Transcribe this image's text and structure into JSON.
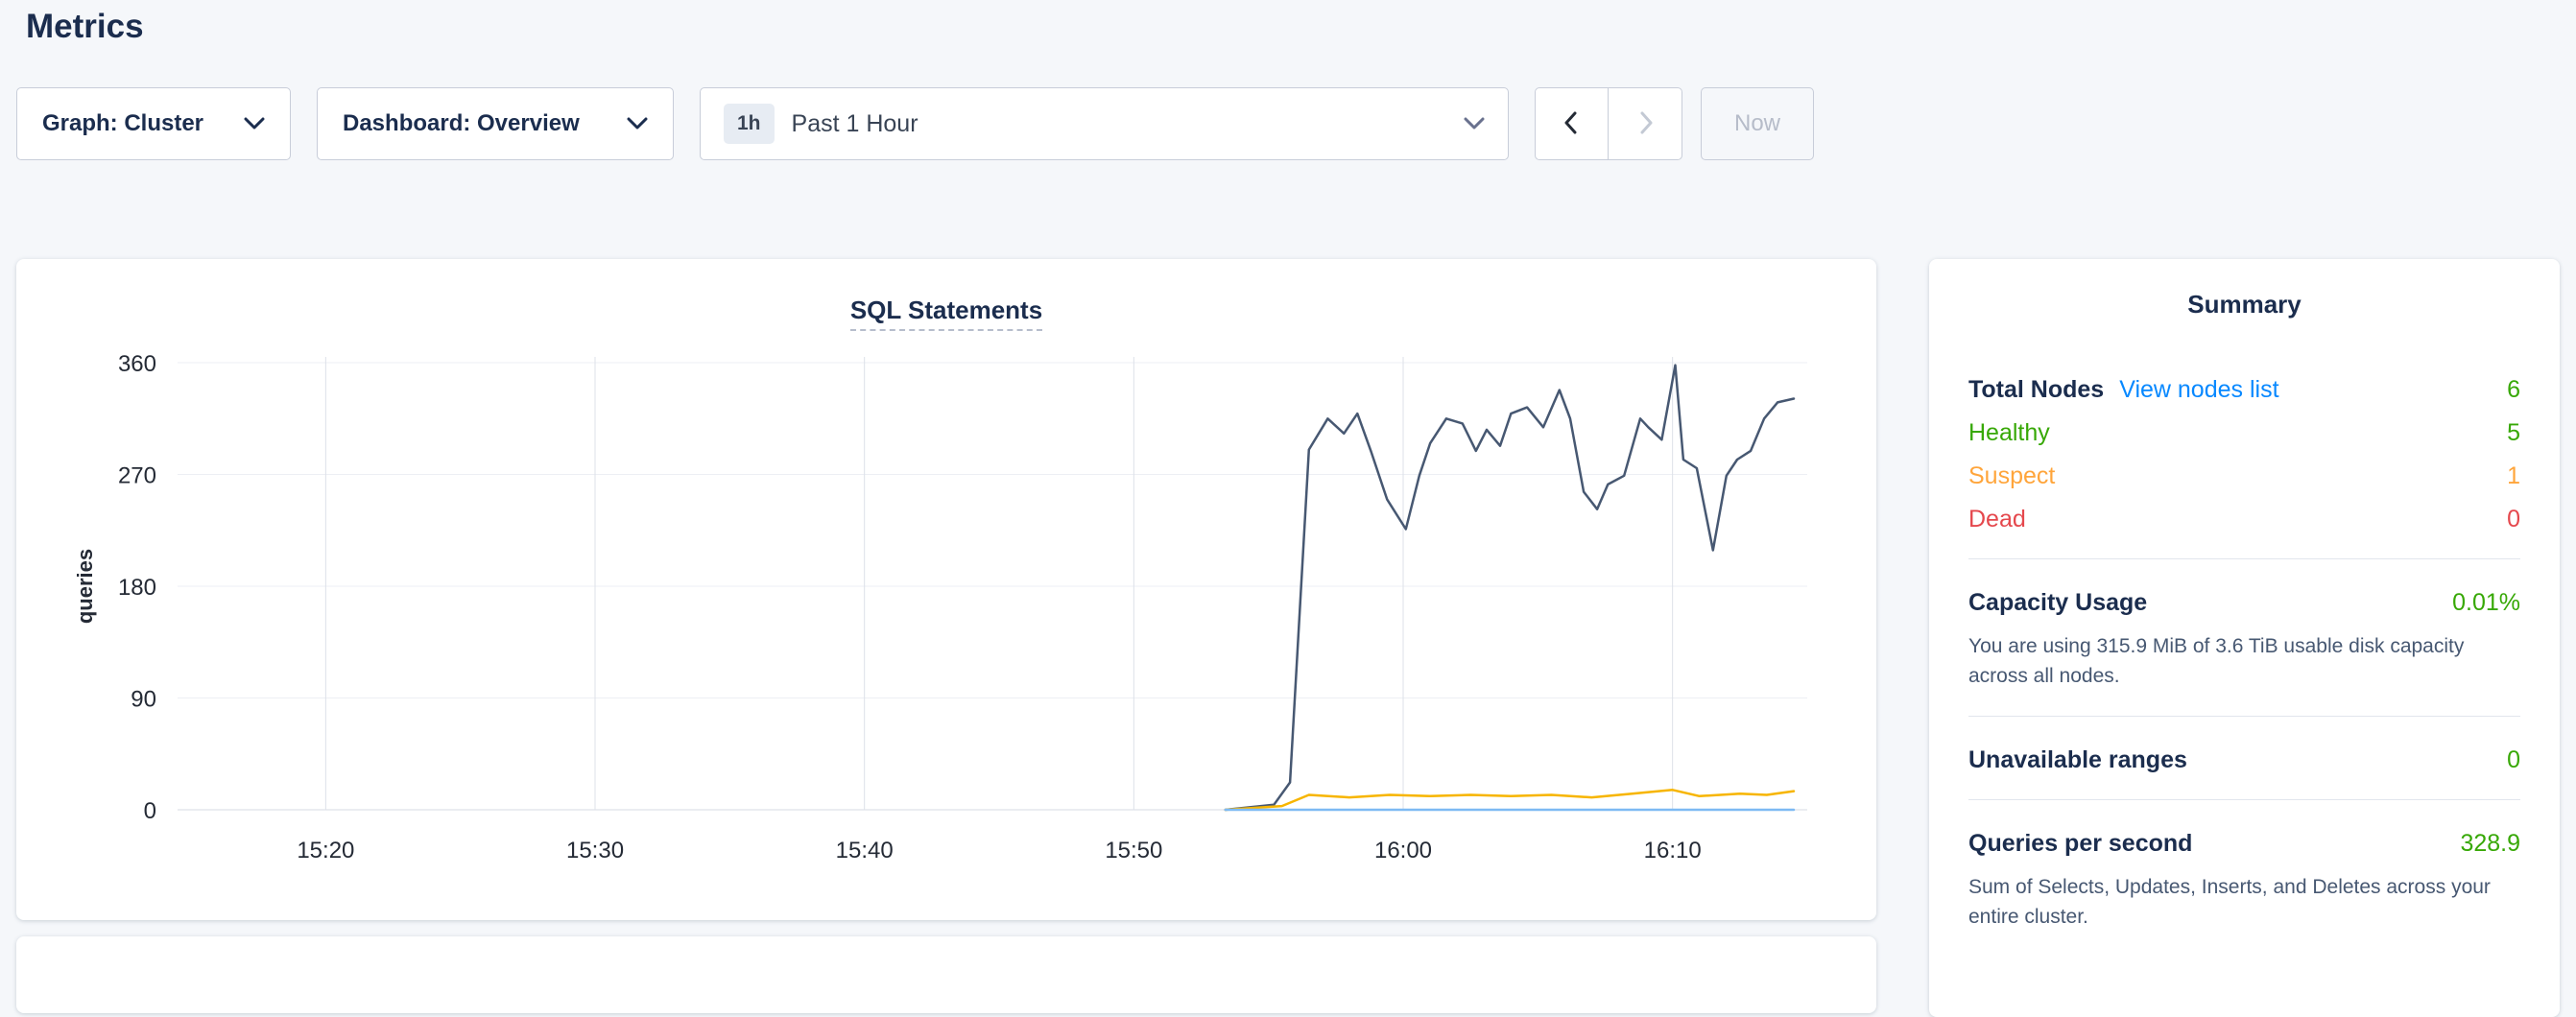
{
  "page": {
    "title": "Metrics",
    "background": "#f5f7fa"
  },
  "toolbar": {
    "graph_dropdown_label": "Graph: Cluster",
    "dashboard_dropdown_label": "Dashboard: Overview",
    "time_range_badge": "1h",
    "time_range_label": "Past 1 Hour",
    "now_button_label": "Now"
  },
  "chart_data": {
    "type": "line",
    "title": "SQL Statements",
    "ylabel": "queries",
    "ylim": [
      0,
      360
    ],
    "y_ticks": [
      0,
      90,
      180,
      270,
      360
    ],
    "x_domain": [
      -0.5,
      60
    ],
    "x_ticks": [
      {
        "t": 5,
        "label": "15:20"
      },
      {
        "t": 15,
        "label": "15:30"
      },
      {
        "t": 25,
        "label": "15:40"
      },
      {
        "t": 35,
        "label": "15:50"
      },
      {
        "t": 45,
        "label": "16:00"
      },
      {
        "t": 55,
        "label": "16:10"
      }
    ],
    "grid": true,
    "legend_position": "none",
    "series": [
      {
        "name": "series-1",
        "color": "#475872",
        "points": [
          [
            38.4,
            0
          ],
          [
            40.2,
            4
          ],
          [
            40.8,
            22
          ],
          [
            41.5,
            290
          ],
          [
            42.2,
            315
          ],
          [
            42.8,
            303
          ],
          [
            43.3,
            319
          ],
          [
            43.8,
            289
          ],
          [
            44.4,
            250
          ],
          [
            45.1,
            226
          ],
          [
            45.6,
            269
          ],
          [
            46.0,
            295
          ],
          [
            46.6,
            315
          ],
          [
            47.2,
            311
          ],
          [
            47.7,
            289
          ],
          [
            48.1,
            306
          ],
          [
            48.6,
            293
          ],
          [
            49.0,
            319
          ],
          [
            49.6,
            324
          ],
          [
            50.2,
            308
          ],
          [
            50.8,
            338
          ],
          [
            51.2,
            315
          ],
          [
            51.7,
            256
          ],
          [
            52.2,
            242
          ],
          [
            52.6,
            262
          ],
          [
            53.2,
            269
          ],
          [
            53.8,
            315
          ],
          [
            54.1,
            308
          ],
          [
            54.6,
            298
          ],
          [
            55.1,
            358
          ],
          [
            55.4,
            282
          ],
          [
            55.9,
            275
          ],
          [
            56.5,
            209
          ],
          [
            57.0,
            269
          ],
          [
            57.4,
            282
          ],
          [
            57.9,
            289
          ],
          [
            58.4,
            315
          ],
          [
            58.9,
            328
          ],
          [
            59.5,
            331
          ]
        ]
      },
      {
        "name": "series-2",
        "color": "#f7b500",
        "points": [
          [
            38.4,
            0
          ],
          [
            40.5,
            3
          ],
          [
            41.5,
            12
          ],
          [
            43,
            10
          ],
          [
            44.5,
            12
          ],
          [
            46,
            11
          ],
          [
            47.5,
            12
          ],
          [
            49,
            11
          ],
          [
            50.5,
            12
          ],
          [
            52,
            10
          ],
          [
            53.5,
            13
          ],
          [
            55,
            16
          ],
          [
            56,
            11
          ],
          [
            57.5,
            13
          ],
          [
            58.5,
            12
          ],
          [
            59.5,
            15
          ]
        ]
      },
      {
        "name": "series-3",
        "color": "#7dbaf3",
        "points": [
          [
            38.4,
            0
          ],
          [
            59.5,
            0
          ]
        ]
      }
    ]
  },
  "summary": {
    "title": "Summary",
    "total_nodes_label": "Total Nodes",
    "view_nodes_link": "View nodes list",
    "total_nodes_value": "6",
    "healthy_label": "Healthy",
    "healthy_value": "5",
    "suspect_label": "Suspect",
    "suspect_value": "1",
    "dead_label": "Dead",
    "dead_value": "0",
    "capacity_label": "Capacity Usage",
    "capacity_value": "0.01%",
    "capacity_description": "You are using 315.9 MiB of 3.6 TiB usable disk capacity across all nodes.",
    "unavailable_label": "Unavailable ranges",
    "unavailable_value": "0",
    "qps_label": "Queries per second",
    "qps_value": "328.9",
    "qps_description": "Sum of Selects, Updates, Inserts, and Deletes across your entire cluster.",
    "colors": {
      "green": "#37a806",
      "orange": "#ffa53b",
      "red": "#e5484d",
      "link_blue": "#0788ff"
    }
  }
}
